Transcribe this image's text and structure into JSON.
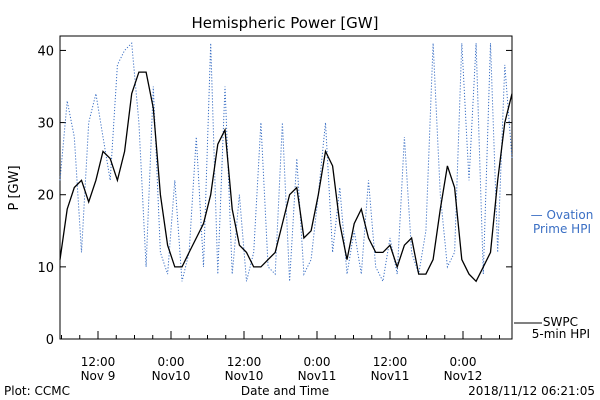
{
  "chart_data": {
    "type": "line",
    "title": "Hemispheric Power [GW]",
    "xlabel": "Date and Time",
    "ylabel": "P [GW]",
    "ylim": [
      0,
      42
    ],
    "yticks": [
      0,
      10,
      20,
      30,
      40
    ],
    "x_tick_labels": [
      {
        "time": "12:00",
        "date": "Nov 9"
      },
      {
        "time": "0:00",
        "date": "Nov10"
      },
      {
        "time": "12:00",
        "date": "Nov10"
      },
      {
        "time": "0:00",
        "date": "Nov11"
      },
      {
        "time": "12:00",
        "date": "Nov11"
      },
      {
        "time": "0:00",
        "date": "Nov12"
      }
    ],
    "x_start": "2018-11-09 05:00",
    "x_end": "2018-11-12 06:00",
    "series": [
      {
        "name": "SWPC 5-min HPI",
        "style": "solid",
        "color": "#000000",
        "points": [
          [
            0,
            11
          ],
          [
            1,
            18
          ],
          [
            2,
            21
          ],
          [
            3,
            22
          ],
          [
            4,
            19
          ],
          [
            5,
            22
          ],
          [
            6,
            26
          ],
          [
            7,
            25
          ],
          [
            8,
            22
          ],
          [
            9,
            26
          ],
          [
            10,
            34
          ],
          [
            11,
            37
          ],
          [
            12,
            37
          ],
          [
            13,
            32
          ],
          [
            14,
            20
          ],
          [
            15,
            13
          ],
          [
            16,
            10
          ],
          [
            17,
            10
          ],
          [
            18,
            12
          ],
          [
            19,
            14
          ],
          [
            20,
            16
          ],
          [
            21,
            20
          ],
          [
            22,
            27
          ],
          [
            23,
            29
          ],
          [
            24,
            18
          ],
          [
            25,
            13
          ],
          [
            26,
            12
          ],
          [
            27,
            10
          ],
          [
            28,
            10
          ],
          [
            29,
            11
          ],
          [
            30,
            12
          ],
          [
            31,
            16
          ],
          [
            32,
            20
          ],
          [
            33,
            21
          ],
          [
            34,
            14
          ],
          [
            35,
            15
          ],
          [
            36,
            20
          ],
          [
            37,
            26
          ],
          [
            38,
            24
          ],
          [
            39,
            16
          ],
          [
            40,
            11
          ],
          [
            41,
            16
          ],
          [
            42,
            18
          ],
          [
            43,
            14
          ],
          [
            44,
            12
          ],
          [
            45,
            12
          ],
          [
            46,
            13
          ],
          [
            47,
            10
          ],
          [
            48,
            13
          ],
          [
            49,
            14
          ],
          [
            50,
            9
          ],
          [
            51,
            9
          ],
          [
            52,
            11
          ],
          [
            53,
            18
          ],
          [
            54,
            24
          ],
          [
            55,
            21
          ],
          [
            56,
            11
          ],
          [
            57,
            9
          ],
          [
            58,
            8
          ],
          [
            59,
            10
          ],
          [
            60,
            12
          ],
          [
            61,
            22
          ],
          [
            62,
            30
          ],
          [
            63,
            34
          ]
        ]
      },
      {
        "name": "Ovation Prime HPI",
        "style": "dotted",
        "color": "#3a6fc4",
        "points": [
          [
            0,
            22
          ],
          [
            1,
            33
          ],
          [
            2,
            28
          ],
          [
            3,
            12
          ],
          [
            4,
            30
          ],
          [
            5,
            34
          ],
          [
            6,
            28
          ],
          [
            7,
            22
          ],
          [
            8,
            38
          ],
          [
            9,
            40
          ],
          [
            10,
            41
          ],
          [
            11,
            30
          ],
          [
            12,
            10
          ],
          [
            13,
            35
          ],
          [
            14,
            12
          ],
          [
            15,
            9
          ],
          [
            16,
            22
          ],
          [
            17,
            8
          ],
          [
            18,
            12
          ],
          [
            19,
            28
          ],
          [
            20,
            10
          ],
          [
            21,
            41
          ],
          [
            22,
            9
          ],
          [
            23,
            35
          ],
          [
            24,
            9
          ],
          [
            25,
            20
          ],
          [
            26,
            8
          ],
          [
            27,
            12
          ],
          [
            28,
            30
          ],
          [
            29,
            10
          ],
          [
            30,
            9
          ],
          [
            31,
            30
          ],
          [
            32,
            8
          ],
          [
            33,
            25
          ],
          [
            34,
            9
          ],
          [
            35,
            11
          ],
          [
            36,
            20
          ],
          [
            37,
            30
          ],
          [
            38,
            12
          ],
          [
            39,
            21
          ],
          [
            40,
            9
          ],
          [
            41,
            15
          ],
          [
            42,
            9
          ],
          [
            43,
            22
          ],
          [
            44,
            10
          ],
          [
            45,
            8
          ],
          [
            46,
            14
          ],
          [
            47,
            9
          ],
          [
            48,
            28
          ],
          [
            49,
            12
          ],
          [
            50,
            9
          ],
          [
            51,
            15
          ],
          [
            52,
            41
          ],
          [
            53,
            20
          ],
          [
            54,
            10
          ],
          [
            55,
            12
          ],
          [
            56,
            41
          ],
          [
            57,
            22
          ],
          [
            58,
            41
          ],
          [
            59,
            9
          ],
          [
            60,
            41
          ],
          [
            61,
            12
          ],
          [
            62,
            38
          ],
          [
            63,
            25
          ]
        ]
      }
    ],
    "legend": [
      {
        "line1": "— Ovation",
        "line2": "Prime HPI",
        "color": "#3a6fc4"
      },
      {
        "line1": "SWPC",
        "line2": "5-min HPI",
        "color": "#000000"
      }
    ]
  },
  "footer": {
    "left": "Plot: CCMC",
    "right": "2018/11/12 06:21:05"
  }
}
